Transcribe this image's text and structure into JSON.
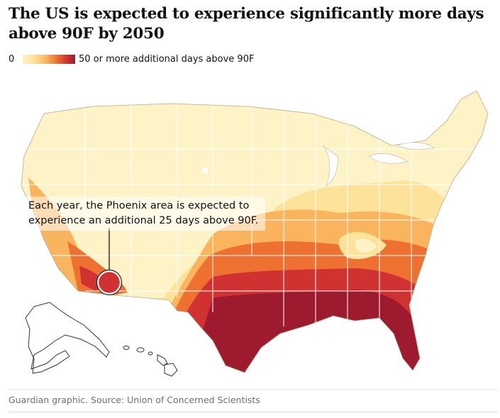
{
  "title": "The US is expected to experience significantly more days above 90F by 2050",
  "legend": {
    "min_label": "0",
    "max_label": "50 or more additional days above 90F",
    "scale_colors": [
      "#fdf3c6",
      "#fde39a",
      "#fbb45e",
      "#ee7131",
      "#cf3231",
      "#9e1a2e"
    ]
  },
  "annotation": {
    "text": "Each year, the Phoenix area is expected to experience an additional 25 days above 90F.",
    "city": "Phoenix",
    "additional_days": 25
  },
  "source": "Guardian graphic. Source: Union of Concerned Scientists",
  "colors": {
    "base": "#fdf3c6",
    "light": "#fde39a",
    "mid": "#fbb45e",
    "orange": "#ee7131",
    "red": "#cf3231",
    "dark": "#9e1a2e",
    "border": "#ffffff",
    "outline": "#333333"
  }
}
